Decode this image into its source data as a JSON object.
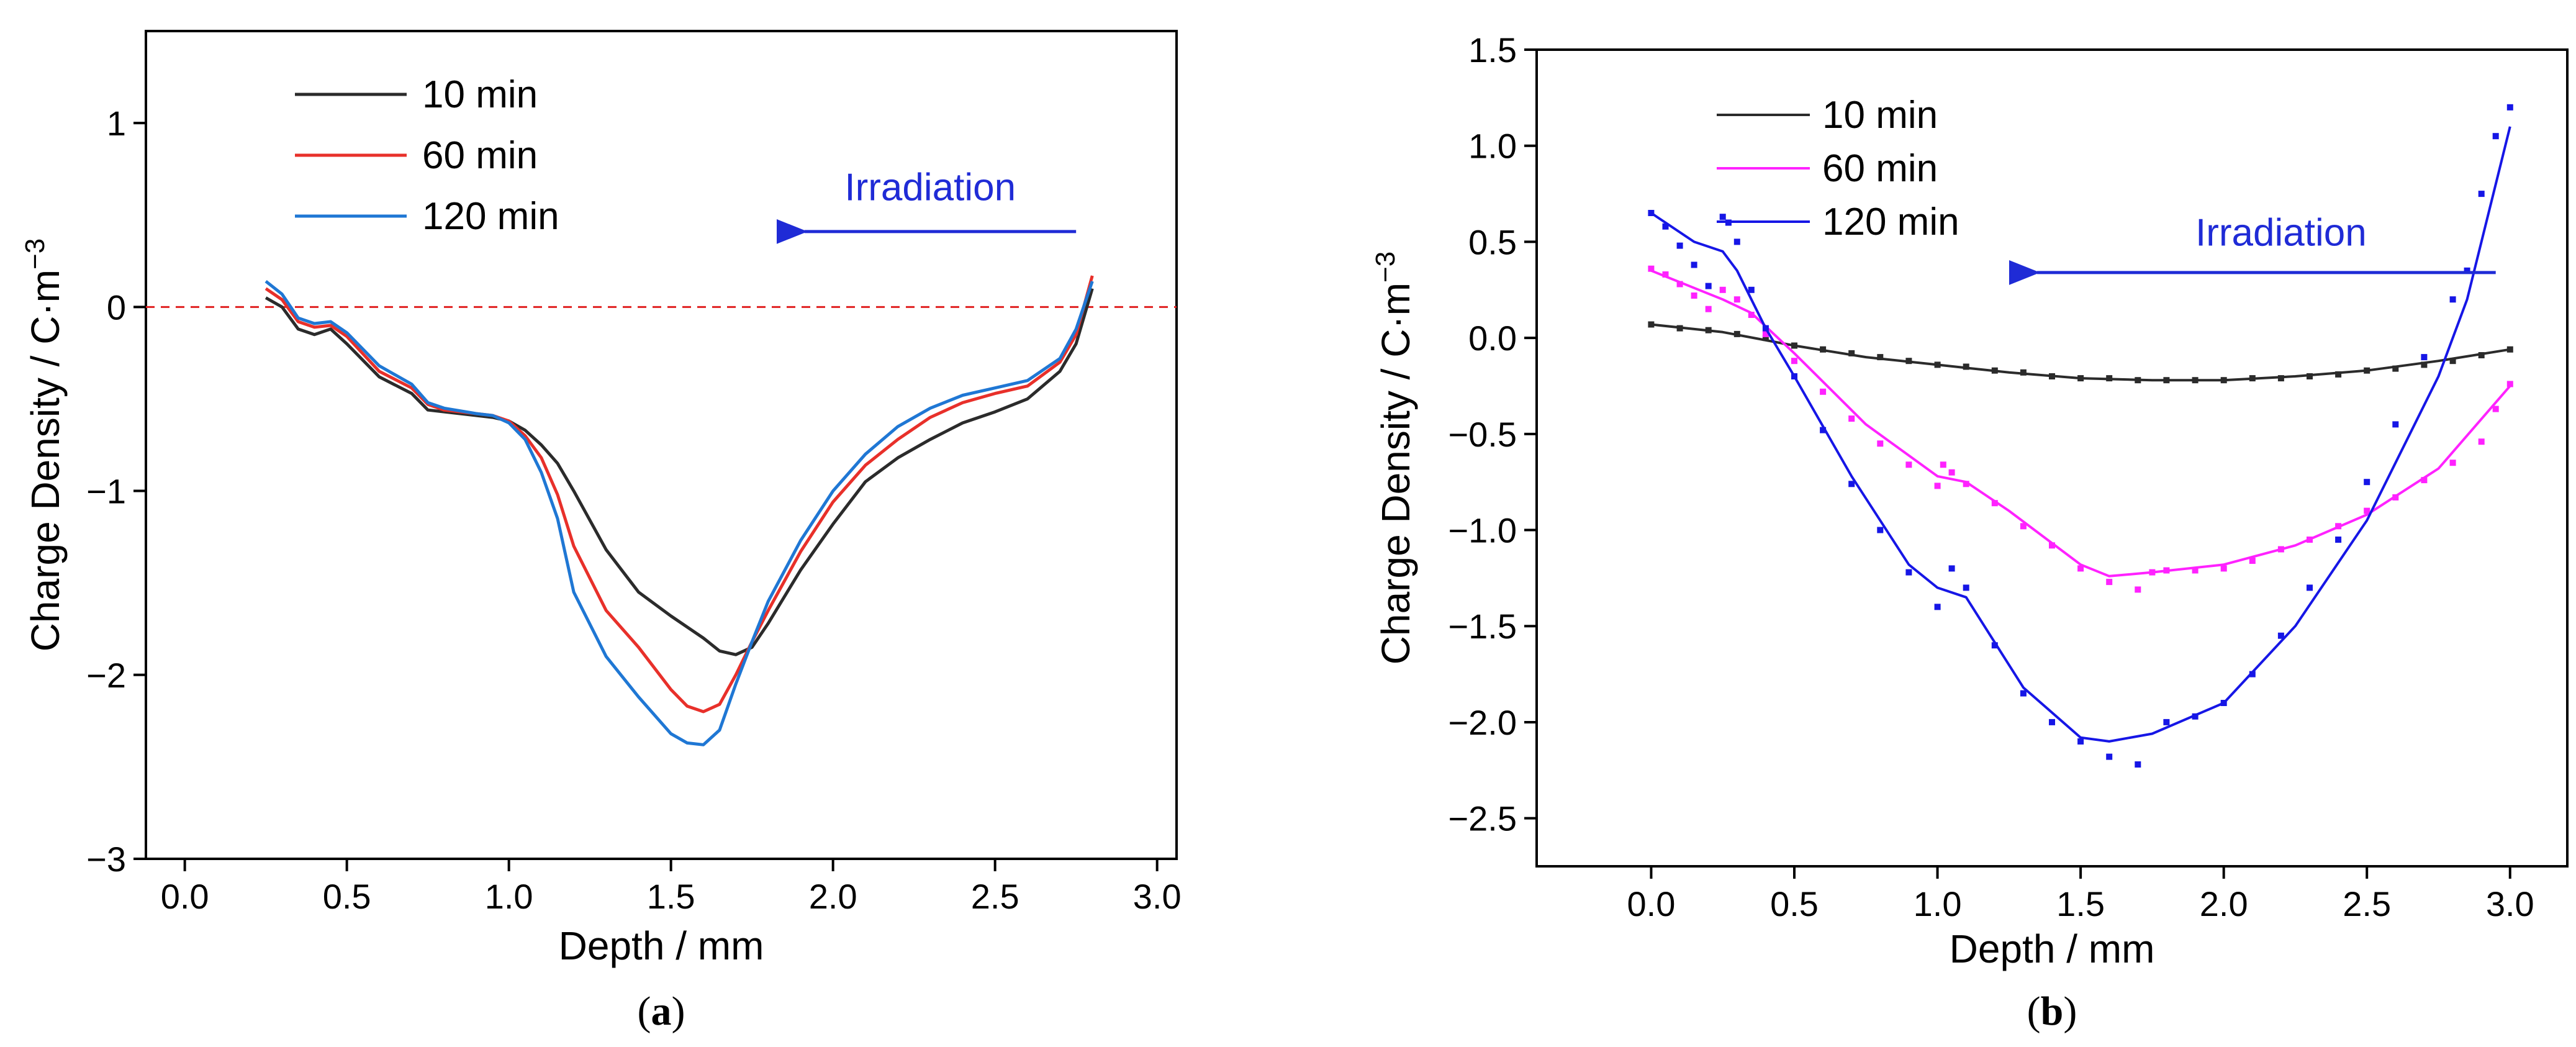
{
  "colors": {
    "black": "#2b2b2b",
    "red": "#e8302a",
    "blue_a": "#1f77d4",
    "magenta": "#ff22ff",
    "blue_b": "#1616e6",
    "zero_line": "#e02020",
    "annotation": "#1f2bd6"
  },
  "chart_data": [
    {
      "id": "a",
      "type": "line",
      "panel_label": "(a)",
      "panel_letter": "a",
      "xlabel": "Depth / mm",
      "ylabel": "Charge Density / C·m",
      "ylabel_sup": "−3",
      "xlim": [
        -0.12,
        3.06
      ],
      "ylim": [
        -3,
        1.5
      ],
      "xticks": [
        0.0,
        0.5,
        1.0,
        1.5,
        2.0,
        2.5,
        3.0
      ],
      "xtick_labels": [
        "0.0",
        "0.5",
        "1.0",
        "1.5",
        "2.0",
        "2.5",
        "3.0"
      ],
      "yticks": [
        1,
        0,
        -1,
        -2,
        -3
      ],
      "ytick_labels": [
        "1",
        "0",
        "−1",
        "−2",
        "−3"
      ],
      "reference_line": {
        "y": 0,
        "style": "dashed"
      },
      "annotation": {
        "text": "Irradiation",
        "arrow_from_x": 2.75,
        "arrow_to_x": 1.87,
        "arrow_y": 0.41,
        "text_x": 2.3,
        "text_y": 0.58
      },
      "legend": [
        {
          "label": "10 min",
          "color_key": "black"
        },
        {
          "label": "60 min",
          "color_key": "red"
        },
        {
          "label": "120 min",
          "color_key": "blue_a"
        }
      ],
      "series": [
        {
          "name": "10 min",
          "color_key": "black",
          "x": [
            0.25,
            0.3,
            0.35,
            0.4,
            0.45,
            0.5,
            0.6,
            0.7,
            0.75,
            0.8,
            0.9,
            0.95,
            1.0,
            1.05,
            1.1,
            1.15,
            1.2,
            1.3,
            1.4,
            1.5,
            1.6,
            1.65,
            1.7,
            1.75,
            1.8,
            1.9,
            2.0,
            2.1,
            2.2,
            2.3,
            2.4,
            2.5,
            2.6,
            2.7,
            2.75,
            2.8
          ],
          "y": [
            0.05,
            0.0,
            -0.12,
            -0.15,
            -0.12,
            -0.2,
            -0.38,
            -0.47,
            -0.56,
            -0.57,
            -0.59,
            -0.6,
            -0.62,
            -0.67,
            -0.75,
            -0.85,
            -1.0,
            -1.32,
            -1.55,
            -1.68,
            -1.8,
            -1.87,
            -1.89,
            -1.85,
            -1.72,
            -1.43,
            -1.18,
            -0.95,
            -0.82,
            -0.72,
            -0.63,
            -0.57,
            -0.5,
            -0.35,
            -0.2,
            0.1
          ]
        },
        {
          "name": "60 min",
          "color_key": "red",
          "x": [
            0.25,
            0.3,
            0.35,
            0.4,
            0.45,
            0.5,
            0.6,
            0.7,
            0.75,
            0.8,
            0.9,
            0.95,
            1.0,
            1.05,
            1.1,
            1.15,
            1.2,
            1.3,
            1.4,
            1.5,
            1.55,
            1.6,
            1.65,
            1.7,
            1.75,
            1.8,
            1.9,
            2.0,
            2.1,
            2.2,
            2.3,
            2.4,
            2.5,
            2.6,
            2.7,
            2.75,
            2.8
          ],
          "y": [
            0.1,
            0.04,
            -0.08,
            -0.11,
            -0.1,
            -0.16,
            -0.35,
            -0.44,
            -0.53,
            -0.56,
            -0.58,
            -0.59,
            -0.62,
            -0.7,
            -0.82,
            -1.02,
            -1.3,
            -1.65,
            -1.85,
            -2.08,
            -2.17,
            -2.2,
            -2.16,
            -2.0,
            -1.82,
            -1.65,
            -1.33,
            -1.06,
            -0.86,
            -0.72,
            -0.6,
            -0.52,
            -0.47,
            -0.43,
            -0.3,
            -0.15,
            0.17
          ]
        },
        {
          "name": "120 min",
          "color_key": "blue_a",
          "x": [
            0.25,
            0.3,
            0.35,
            0.4,
            0.45,
            0.5,
            0.6,
            0.7,
            0.75,
            0.8,
            0.9,
            0.95,
            1.0,
            1.05,
            1.1,
            1.15,
            1.2,
            1.3,
            1.4,
            1.5,
            1.55,
            1.6,
            1.65,
            1.7,
            1.75,
            1.8,
            1.9,
            2.0,
            2.1,
            2.2,
            2.3,
            2.4,
            2.5,
            2.6,
            2.7,
            2.75,
            2.8
          ],
          "y": [
            0.14,
            0.07,
            -0.06,
            -0.09,
            -0.08,
            -0.14,
            -0.32,
            -0.42,
            -0.52,
            -0.55,
            -0.58,
            -0.59,
            -0.63,
            -0.72,
            -0.9,
            -1.15,
            -1.55,
            -1.9,
            -2.12,
            -2.32,
            -2.37,
            -2.38,
            -2.3,
            -2.05,
            -1.82,
            -1.6,
            -1.27,
            -1.0,
            -0.8,
            -0.65,
            -0.55,
            -0.48,
            -0.44,
            -0.4,
            -0.28,
            -0.12,
            0.14
          ]
        }
      ]
    },
    {
      "id": "b",
      "type": "scatter",
      "panel_label": "(b)",
      "panel_letter": "b",
      "xlabel": "Depth / mm",
      "ylabel": "Charge Density / C·m",
      "ylabel_sup": "−3",
      "xlim": [
        -0.4,
        3.2
      ],
      "ylim": [
        -2.75,
        1.5
      ],
      "xticks": [
        0.0,
        0.5,
        1.0,
        1.5,
        2.0,
        2.5,
        3.0
      ],
      "xtick_labels": [
        "0.0",
        "0.5",
        "1.0",
        "1.5",
        "2.0",
        "2.5",
        "3.0"
      ],
      "yticks": [
        1.5,
        1.0,
        0.5,
        0.0,
        -0.5,
        -1.0,
        -1.5,
        -2.0,
        -2.5
      ],
      "ytick_labels": [
        "1.5",
        "1.0",
        "0.5",
        "0.0",
        "−0.5",
        "−1.0",
        "−1.5",
        "−2.0",
        "−2.5"
      ],
      "annotation": {
        "text": "Irradiation",
        "arrow_from_x": 2.95,
        "arrow_to_x": 1.3,
        "arrow_y": 0.34,
        "text_x": 2.2,
        "text_y": 0.48
      },
      "legend": [
        {
          "label": "10 min",
          "color_key": "black"
        },
        {
          "label": "60 min",
          "color_key": "magenta"
        },
        {
          "label": "120 min",
          "color_key": "blue_b"
        }
      ],
      "series": [
        {
          "name": "10 min",
          "color_key": "black",
          "fit_x": [
            0.0,
            0.25,
            0.5,
            0.75,
            1.0,
            1.25,
            1.5,
            1.75,
            2.0,
            2.25,
            2.5,
            2.75,
            3.0
          ],
          "fit_y": [
            0.07,
            0.03,
            -0.04,
            -0.1,
            -0.14,
            -0.18,
            -0.21,
            -0.22,
            -0.22,
            -0.2,
            -0.17,
            -0.12,
            -0.06
          ],
          "points_x": [
            0.0,
            0.1,
            0.2,
            0.3,
            0.4,
            0.5,
            0.6,
            0.7,
            0.8,
            0.9,
            1.0,
            1.1,
            1.2,
            1.3,
            1.4,
            1.5,
            1.6,
            1.7,
            1.8,
            1.9,
            2.0,
            2.1,
            2.2,
            2.3,
            2.4,
            2.5,
            2.6,
            2.7,
            2.8,
            2.9,
            3.0
          ],
          "points_y": [
            0.07,
            0.05,
            0.04,
            0.02,
            0.0,
            -0.04,
            -0.06,
            -0.08,
            -0.1,
            -0.12,
            -0.14,
            -0.15,
            -0.17,
            -0.18,
            -0.2,
            -0.21,
            -0.21,
            -0.22,
            -0.22,
            -0.22,
            -0.22,
            -0.21,
            -0.21,
            -0.2,
            -0.19,
            -0.17,
            -0.16,
            -0.14,
            -0.12,
            -0.09,
            -0.06
          ]
        },
        {
          "name": "60 min",
          "color_key": "magenta",
          "fit_x": [
            0.0,
            0.15,
            0.25,
            0.35,
            0.5,
            0.75,
            1.0,
            1.1,
            1.25,
            1.5,
            1.6,
            1.75,
            2.0,
            2.25,
            2.5,
            2.75,
            3.0
          ],
          "fit_y": [
            0.35,
            0.26,
            0.2,
            0.13,
            -0.08,
            -0.45,
            -0.72,
            -0.75,
            -0.9,
            -1.18,
            -1.24,
            -1.22,
            -1.18,
            -1.08,
            -0.92,
            -0.68,
            -0.25
          ],
          "points_x": [
            0.0,
            0.05,
            0.1,
            0.15,
            0.2,
            0.25,
            0.3,
            0.35,
            0.4,
            0.5,
            0.6,
            0.7,
            0.8,
            0.9,
            1.0,
            1.02,
            1.05,
            1.1,
            1.2,
            1.3,
            1.4,
            1.5,
            1.6,
            1.7,
            1.75,
            1.8,
            1.9,
            2.0,
            2.1,
            2.2,
            2.3,
            2.4,
            2.5,
            2.6,
            2.7,
            2.8,
            2.9,
            2.95,
            3.0
          ],
          "points_y": [
            0.36,
            0.33,
            0.28,
            0.22,
            0.15,
            0.25,
            0.2,
            0.12,
            0.02,
            -0.12,
            -0.28,
            -0.42,
            -0.55,
            -0.66,
            -0.77,
            -0.66,
            -0.7,
            -0.76,
            -0.86,
            -0.98,
            -1.08,
            -1.2,
            -1.27,
            -1.31,
            -1.22,
            -1.21,
            -1.21,
            -1.2,
            -1.16,
            -1.1,
            -1.05,
            -0.98,
            -0.9,
            -0.83,
            -0.74,
            -0.65,
            -0.54,
            -0.37,
            -0.24
          ]
        },
        {
          "name": "120 min",
          "color_key": "blue_b",
          "fit_x": [
            0.0,
            0.15,
            0.25,
            0.3,
            0.4,
            0.5,
            0.7,
            0.9,
            1.0,
            1.1,
            1.3,
            1.5,
            1.6,
            1.75,
            2.0,
            2.25,
            2.5,
            2.75,
            2.85,
            3.0
          ],
          "fit_y": [
            0.65,
            0.5,
            0.45,
            0.35,
            0.05,
            -0.2,
            -0.72,
            -1.18,
            -1.3,
            -1.35,
            -1.82,
            -2.08,
            -2.1,
            -2.06,
            -1.9,
            -1.5,
            -0.95,
            -0.2,
            0.2,
            1.1
          ],
          "points_x": [
            0.0,
            0.05,
            0.1,
            0.15,
            0.2,
            0.25,
            0.27,
            0.3,
            0.35,
            0.4,
            0.5,
            0.6,
            0.7,
            0.8,
            0.9,
            1.0,
            1.05,
            1.1,
            1.2,
            1.3,
            1.4,
            1.5,
            1.6,
            1.7,
            1.8,
            1.9,
            2.0,
            2.1,
            2.2,
            2.3,
            2.4,
            2.5,
            2.6,
            2.7,
            2.8,
            2.85,
            2.9,
            2.95,
            3.0
          ],
          "points_y": [
            0.65,
            0.58,
            0.48,
            0.38,
            0.27,
            0.63,
            0.6,
            0.5,
            0.25,
            0.05,
            -0.2,
            -0.48,
            -0.76,
            -1.0,
            -1.22,
            -1.4,
            -1.2,
            -1.3,
            -1.6,
            -1.85,
            -2.0,
            -2.1,
            -2.18,
            -2.22,
            -2.0,
            -1.97,
            -1.9,
            -1.75,
            -1.55,
            -1.3,
            -1.05,
            -0.75,
            -0.45,
            -0.1,
            0.2,
            0.35,
            0.75,
            1.05,
            1.2
          ]
        }
      ]
    }
  ]
}
